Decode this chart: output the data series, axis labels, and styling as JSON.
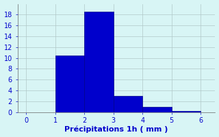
{
  "bin_edges": [
    0,
    1,
    2,
    3,
    4,
    5,
    6
  ],
  "values": [
    0,
    10.5,
    18.5,
    3.0,
    1.0,
    0.2
  ],
  "bar_color": "#0000cc",
  "bar_edge_color": "#000088",
  "background_color": "#d8f5f5",
  "grid_color": "#b0c8c8",
  "xlabel": "Précipitations 1h ( mm )",
  "xlabel_color": "#0000cc",
  "tick_color": "#0000cc",
  "ylim": [
    0,
    20
  ],
  "yticks": [
    0,
    2,
    4,
    6,
    8,
    10,
    12,
    14,
    16,
    18
  ],
  "xlim": [
    -0.3,
    6.5
  ],
  "xticks": [
    0,
    1,
    2,
    3,
    4,
    5,
    6
  ],
  "tick_fontsize": 7,
  "xlabel_fontsize": 8
}
